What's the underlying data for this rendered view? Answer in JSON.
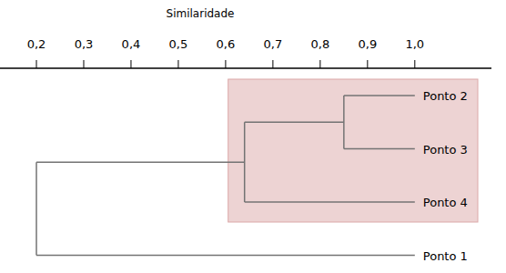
{
  "chart_data": {
    "type": "dendrogram",
    "orientation": "horizontal",
    "x_label": "Similaridade",
    "xlim": [
      0.123,
      1.162
    ],
    "xticks": [
      {
        "value": 0.2,
        "label": "0,2"
      },
      {
        "value": 0.3,
        "label": "0,3"
      },
      {
        "value": 0.4,
        "label": "0,4"
      },
      {
        "value": 0.5,
        "label": "0,5"
      },
      {
        "value": 0.6,
        "label": "0,6"
      },
      {
        "value": 0.7,
        "label": "0,7"
      },
      {
        "value": 0.8,
        "label": "0,8"
      },
      {
        "value": 0.9,
        "label": "0,9"
      },
      {
        "value": 1.0,
        "label": "1,0"
      }
    ],
    "tree": {
      "similarity": 0.2,
      "children": [
        {
          "similarity": 0.64,
          "children": [
            {
              "similarity": 0.85,
              "children": [
                {
                  "label": "Ponto 2",
                  "similarity": 1.0
                },
                {
                  "label": "Ponto 3",
                  "similarity": 1.0
                }
              ]
            },
            {
              "label": "Ponto 4",
              "similarity": 1.0
            }
          ]
        },
        {
          "label": "Ponto 1",
          "similarity": 1.0
        }
      ]
    }
  }
}
